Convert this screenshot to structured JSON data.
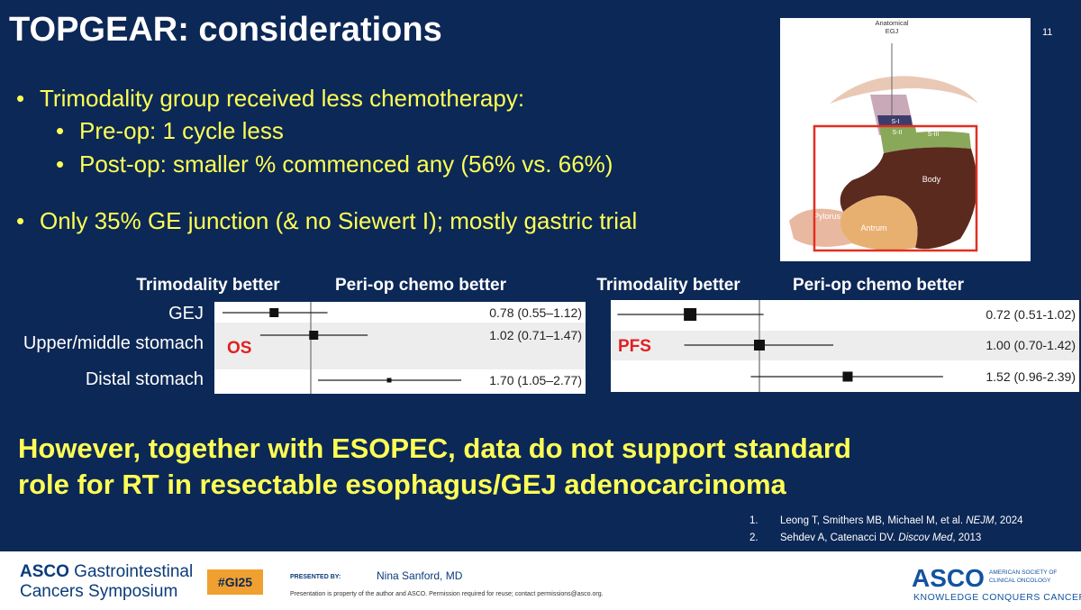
{
  "slide_number": "11",
  "title": "TOPGEAR: considerations",
  "bullets": [
    {
      "text": "Trimodality group received less chemotherapy:",
      "sub": [
        "Pre-op: 1 cycle less",
        "Post-op: smaller % commenced any (56% vs. 66%)"
      ]
    },
    {
      "text": "Only 35% GE junction (& no Siewert I); mostly gastric trial"
    }
  ],
  "figure": {
    "landmark": [
      "Anatomical",
      "EGJ"
    ],
    "labels": [
      "S-I",
      "S-II",
      "S-III",
      "Body",
      "Pylorus",
      "Antrum"
    ]
  },
  "forest_plots": [
    {
      "label": "OS",
      "left_header": "Trimodality better",
      "right_header": "Peri-op chemo better",
      "rows": [
        {
          "name": "GEJ",
          "estimate": 0.78,
          "ci": [
            0.55,
            1.12
          ],
          "text": "0.78 (0.55–1.12)"
        },
        {
          "name": "Upper/middle stomach",
          "estimate": 1.02,
          "ci": [
            0.71,
            1.47
          ],
          "text": "1.02 (0.71–1.47)"
        },
        {
          "name": "Distal stomach",
          "estimate": 1.7,
          "ci": [
            1.05,
            2.77
          ],
          "text": "1.70 (1.05–2.77)"
        }
      ]
    },
    {
      "label": "PFS",
      "left_header": "Trimodality better",
      "right_header": "Peri-op chemo better",
      "rows": [
        {
          "estimate": 0.72,
          "ci": [
            0.51,
            1.02
          ],
          "text": "0.72 (0.51-1.02)"
        },
        {
          "estimate": 1.0,
          "ci": [
            0.7,
            1.42
          ],
          "text": "1.00 (0.70-1.42)"
        },
        {
          "estimate": 1.52,
          "ci": [
            0.96,
            2.39
          ],
          "text": "1.52 (0.96-2.39)"
        }
      ]
    }
  ],
  "conclusion": [
    "However, together with ESOPEC, data do not support standard",
    "role for RT in resectable esophagus/GEJ adenocarcinoma"
  ],
  "references": [
    {
      "number": "1.",
      "authors": "Leong T, Smithers MB, Michael M, et al. ",
      "journal": "NEJM",
      "year": ", 2024"
    },
    {
      "number": "2.",
      "authors": "Sehdev A, Catenacci DV. ",
      "journal": "Discov Med",
      "year": ", 2013"
    }
  ],
  "footer": {
    "logo_bold": "ASCO",
    "logo_rest": " Gastrointestinal",
    "logo_line2": "Cancers Symposium",
    "hashtag": "#GI25",
    "presented_by": "PRESENTED BY:",
    "presenter": "Nina Sanford, MD",
    "notice": "Presentation is property of the author and ASCO. Permission required for reuse; contact permissions@asco.org.",
    "asco": "ASCO",
    "society": [
      "AMERICAN SOCIETY OF",
      "CLINICAL ONCOLOGY"
    ],
    "tagline": "KNOWLEDGE CONQUERS CANCER"
  }
}
